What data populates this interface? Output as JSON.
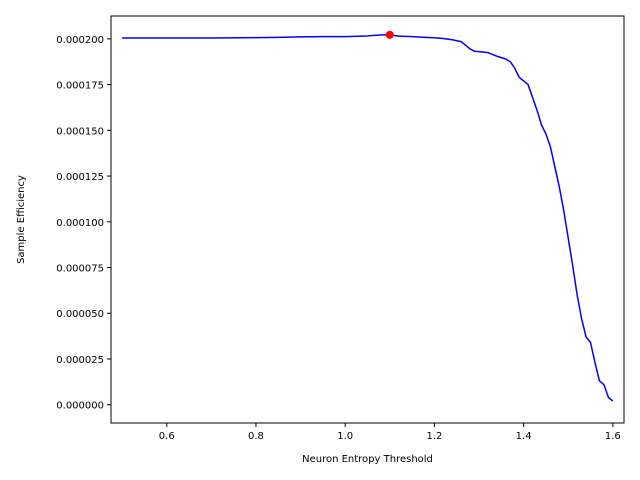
{
  "chart_data": {
    "type": "line",
    "xlabel": "Neuron Entropy Threshold",
    "ylabel": "Sample Efficiency",
    "xlim": [
      0.475,
      1.625
    ],
    "ylim": [
      -1e-05,
      0.0002125
    ],
    "xticks": [
      0.6,
      0.8,
      1.0,
      1.2,
      1.4,
      1.6
    ],
    "xtick_labels": [
      "0.6",
      "0.8",
      "1.0",
      "1.2",
      "1.4",
      "1.6"
    ],
    "yticks": [
      0.0,
      2.5e-05,
      5e-05,
      7.5e-05,
      0.0001,
      0.000125,
      0.00015,
      0.000175,
      0.0002
    ],
    "ytick_labels": [
      "0.000000",
      "0.000025",
      "0.000050",
      "0.000075",
      "0.000100",
      "0.000125",
      "0.000150",
      "0.000175",
      "0.000200"
    ],
    "grid": false,
    "series": [
      {
        "color": "#0000ff",
        "x": [
          0.5,
          0.6,
          0.7,
          0.8,
          0.85,
          0.9,
          0.95,
          1.0,
          1.05,
          1.08,
          1.1,
          1.12,
          1.15,
          1.18,
          1.2,
          1.22,
          1.24,
          1.26,
          1.27,
          1.28,
          1.29,
          1.3,
          1.32,
          1.34,
          1.36,
          1.37,
          1.38,
          1.39,
          1.4,
          1.41,
          1.42,
          1.43,
          1.44,
          1.45,
          1.46,
          1.47,
          1.48,
          1.49,
          1.5,
          1.51,
          1.52,
          1.53,
          1.54,
          1.55,
          1.56,
          1.57,
          1.58,
          1.59,
          1.6
        ],
        "y": [
          0.0002005,
          0.0002005,
          0.0002005,
          0.0002007,
          0.0002008,
          0.0002011,
          0.0002012,
          0.0002012,
          0.0002016,
          0.0002022,
          0.0002022,
          0.0002015,
          0.0002012,
          0.0002008,
          0.0002006,
          0.0002002,
          0.0001995,
          0.0001985,
          0.0001965,
          0.0001945,
          0.0001932,
          0.000193,
          0.0001925,
          0.0001905,
          0.000189,
          0.0001875,
          0.000184,
          0.000179,
          0.000177,
          0.000175,
          0.000168,
          0.000161,
          0.000153,
          0.000148,
          0.000141,
          0.00013,
          0.000119,
          0.000106,
          9.1e-05,
          7.6e-05,
          6e-05,
          4.7e-05,
          3.7e-05,
          3.4e-05,
          2.3e-05,
          1.3e-05,
          1.1e-05,
          4e-06,
          2e-06
        ]
      }
    ],
    "highlight_point": {
      "x": 1.1,
      "y": 0.0002022,
      "color": "#ff0000"
    }
  }
}
